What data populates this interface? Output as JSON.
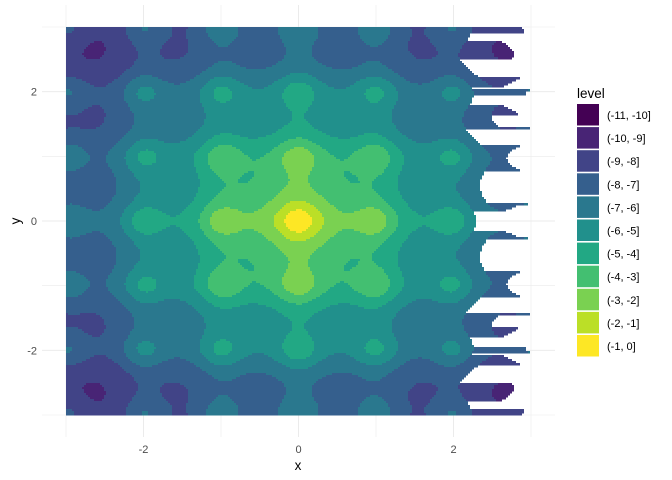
{
  "chart_data": {
    "type": "heatmap",
    "subtype": "filled-contour",
    "xlabel": "x",
    "ylabel": "y",
    "xlim": [
      -3,
      3
    ],
    "ylim": [
      -3,
      3
    ],
    "x_ticks": [
      -2,
      0,
      2
    ],
    "y_ticks": [
      -2,
      0,
      2
    ],
    "x_tick_labels": [
      "-2",
      "0",
      "2"
    ],
    "y_tick_labels": [
      "-2",
      "0",
      "2"
    ],
    "grid": true,
    "legend": {
      "title": "level",
      "position": "right",
      "entries": [
        {
          "label": "(-11, -10]",
          "lo": -11,
          "hi": -10,
          "color": "#440154"
        },
        {
          "label": "(-10, -9]",
          "lo": -10,
          "hi": -9,
          "color": "#482475"
        },
        {
          "label": "(-9, -8]",
          "lo": -9,
          "hi": -8,
          "color": "#414487"
        },
        {
          "label": "(-8, -7]",
          "lo": -8,
          "hi": -7,
          "color": "#355F8D"
        },
        {
          "label": "(-7, -6]",
          "lo": -7,
          "hi": -6,
          "color": "#2A788E"
        },
        {
          "label": "(-6, -5]",
          "lo": -6,
          "hi": -5,
          "color": "#21908C"
        },
        {
          "label": "(-5, -4]",
          "lo": -5,
          "hi": -4,
          "color": "#22A884"
        },
        {
          "label": "(-4, -3]",
          "lo": -4,
          "hi": -3,
          "color": "#43BF71"
        },
        {
          "label": "(-3, -2]",
          "lo": -3,
          "hi": -2,
          "color": "#7AD151"
        },
        {
          "label": "(-2, -1]",
          "lo": -2,
          "hi": -1,
          "color": "#BBDF27"
        },
        {
          "label": "(-1, 0]",
          "lo": -1,
          "hi": 0,
          "color": "#FDE725"
        }
      ]
    }
  }
}
